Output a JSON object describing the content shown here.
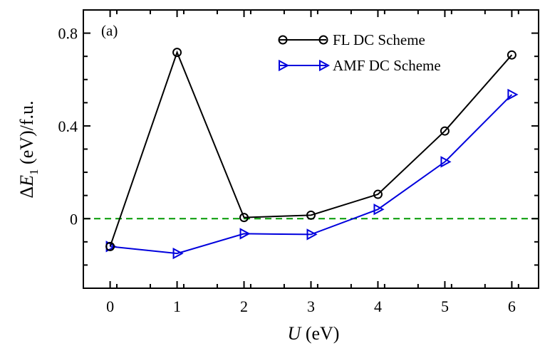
{
  "chart_data": {
    "type": "line",
    "panel_label": "(a)",
    "xlabel": {
      "symbol": "U",
      "unit": " (eV)"
    },
    "ylabel": {
      "prefix": "Δ",
      "symbol": "E",
      "subscript": "1",
      "unit": " (eV)/f.u."
    },
    "x": [
      0,
      1,
      2,
      3,
      4,
      5,
      6
    ],
    "xlim": [
      -0.4,
      6.4
    ],
    "ylim": [
      -0.3,
      0.9
    ],
    "xticks": [
      0,
      1,
      2,
      3,
      4,
      5,
      6
    ],
    "xtick_labels": [
      "0",
      "1",
      "2",
      "3",
      "4",
      "5",
      "6"
    ],
    "yticks": [
      0,
      0.4,
      0.8
    ],
    "ytick_labels": [
      "0",
      "0.4",
      "0.8"
    ],
    "reference_line": {
      "y": 0,
      "style": "dashed",
      "color": "#009900"
    },
    "legend_position": "top-right",
    "grid": false,
    "series": [
      {
        "name": "FL DC Scheme",
        "color": "#000000",
        "marker": "circle",
        "values": [
          -0.12,
          0.717,
          0.005,
          0.015,
          0.105,
          0.378,
          0.706
        ]
      },
      {
        "name": "AMF DC Scheme",
        "color": "#0000dd",
        "marker": "triangle-right",
        "values": [
          -0.12,
          -0.15,
          -0.065,
          -0.068,
          0.04,
          0.245,
          0.535
        ]
      }
    ]
  }
}
